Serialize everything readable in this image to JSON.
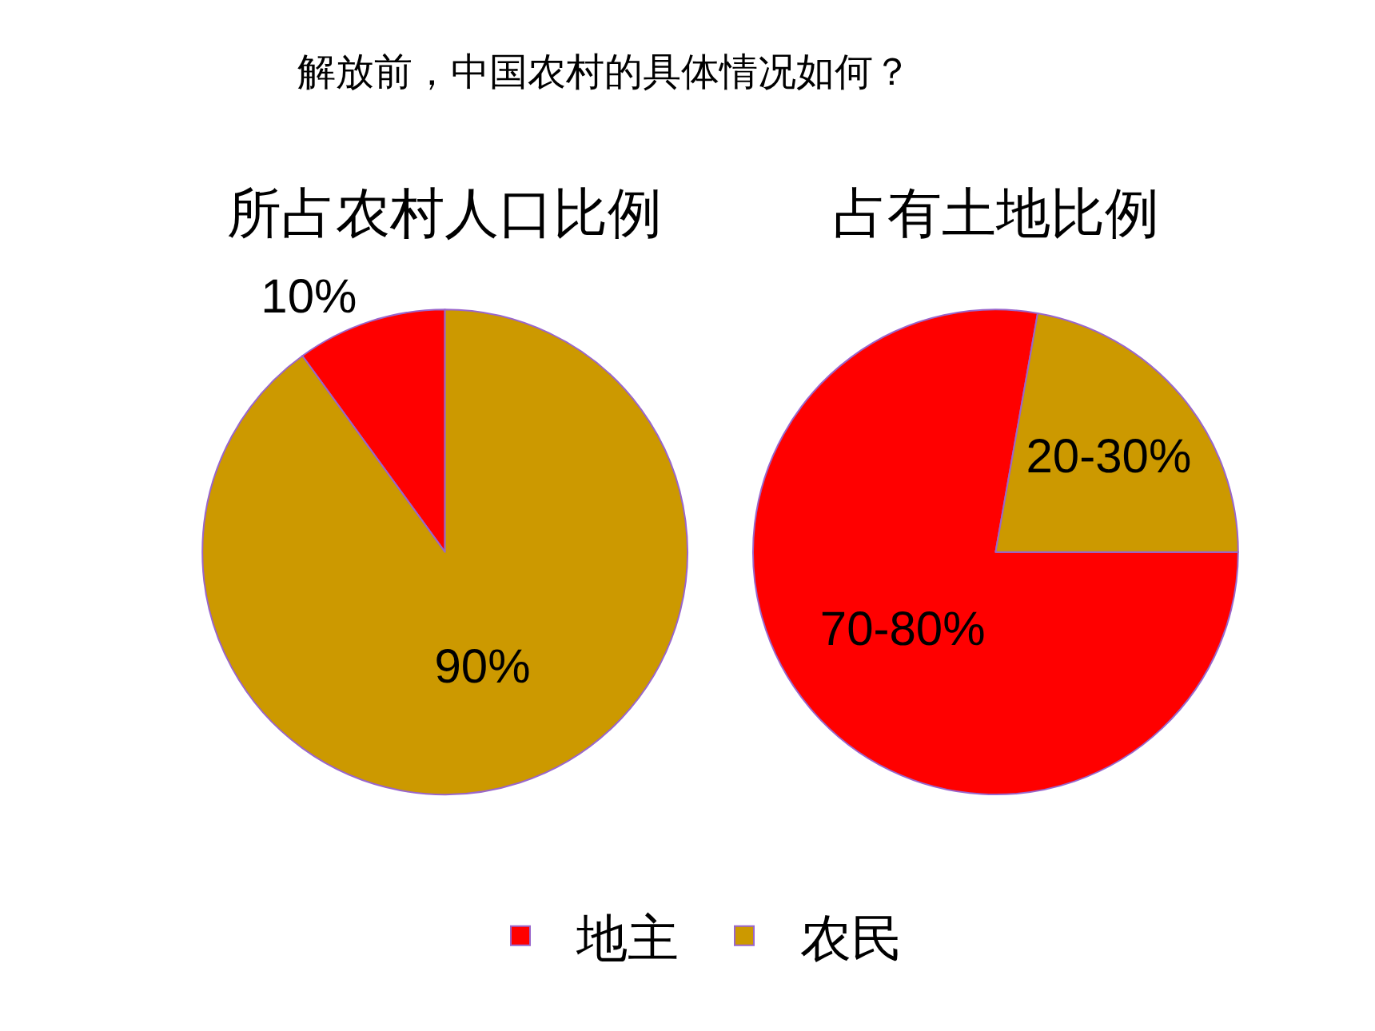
{
  "chart_data": [
    {
      "type": "pie",
      "title": "所占农村人口比例",
      "annotations": [
        "解放前，中国农村的具体情况如何？"
      ],
      "categories": [
        "地主",
        "农民"
      ],
      "values": [
        10,
        90
      ],
      "colors": [
        "#ff0000",
        "#cc9900"
      ],
      "value_labels": [
        "10%",
        "90%"
      ],
      "legend": "bottom"
    },
    {
      "type": "pie",
      "title": "占有土地比例",
      "categories": [
        null,
        null
      ],
      "values": [
        70,
        20
      ],
      "colors": [
        "#ff0000",
        "#cc9900"
      ],
      "value_labels": [
        "70-80%",
        "20-30%"
      ]
    }
  ]
}
